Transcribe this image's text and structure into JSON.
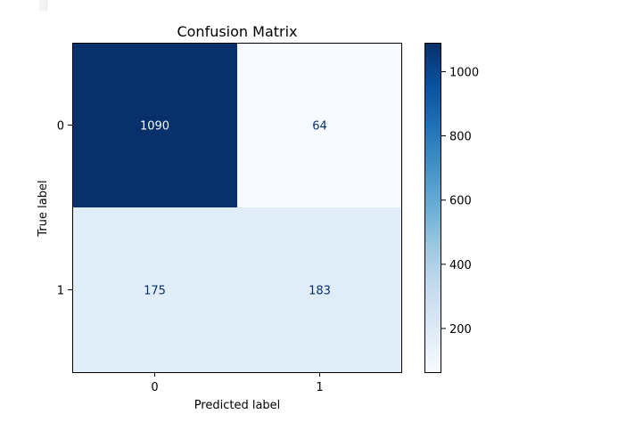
{
  "chart_data": {
    "type": "heatmap",
    "title": "Confusion Matrix",
    "xlabel": "Predicted label",
    "ylabel": "True label",
    "x_categories": [
      "0",
      "1"
    ],
    "y_categories": [
      "0",
      "1"
    ],
    "values": [
      [
        1090,
        64
      ],
      [
        175,
        183
      ]
    ],
    "colormap": "Blues",
    "value_range": [
      64,
      1090
    ],
    "colorbar_ticks": [
      200,
      400,
      600,
      800,
      1000
    ],
    "colorbar_labels": [
      "200",
      "400",
      "600",
      "800",
      "1000"
    ],
    "grid": false,
    "colors": {
      "dark_cell": "#08306b",
      "light_cell": "#f7fbff",
      "text_on_dark": "#f7fbff",
      "text_on_light": "#08306b"
    }
  }
}
